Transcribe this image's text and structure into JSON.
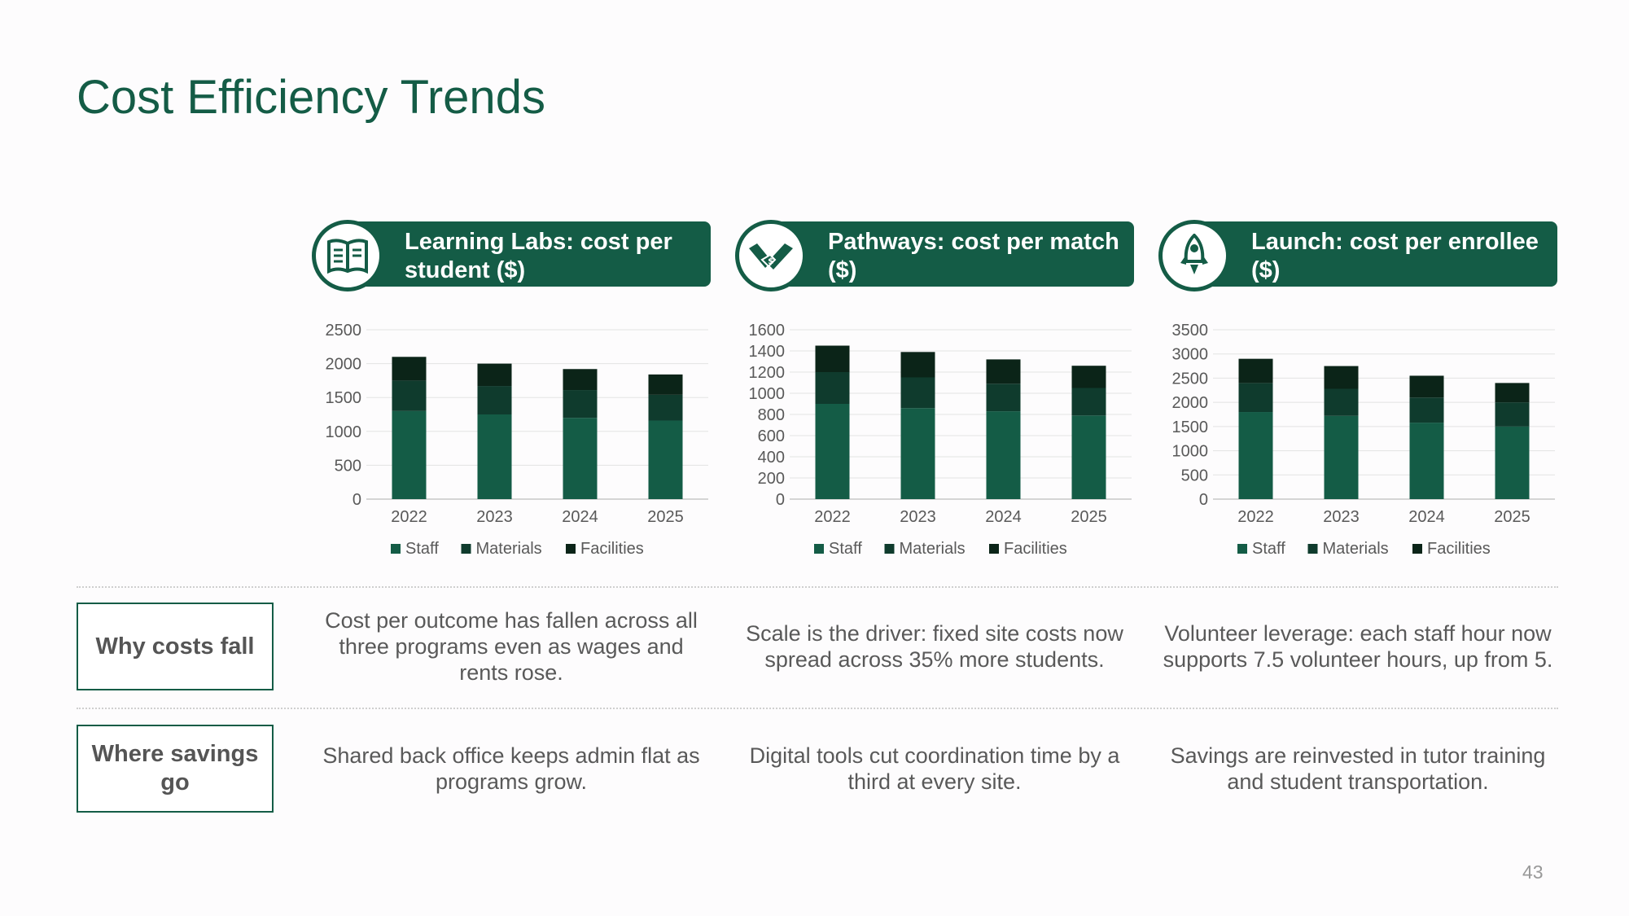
{
  "title": "Cost Efficiency Trends",
  "page_number": "43",
  "colors": {
    "accent": "#145c46",
    "staff": "#145c46",
    "materials": "#0f3b2d",
    "facilities": "#0b2418"
  },
  "programs": [
    {
      "icon": "book-icon",
      "header": "Learning Labs: cost per student ($)"
    },
    {
      "icon": "handshake-icon",
      "header": "Pathways: cost per match ($)"
    },
    {
      "icon": "rocket-icon",
      "header": "Launch: cost per enrollee ($)"
    }
  ],
  "chart_data": [
    {
      "type": "bar",
      "stacked": true,
      "categories": [
        "2022",
        "2023",
        "2024",
        "2025"
      ],
      "series": [
        {
          "name": "Staff",
          "values": [
            1300,
            1250,
            1200,
            1160
          ]
        },
        {
          "name": "Materials",
          "values": [
            450,
            420,
            410,
            380
          ]
        },
        {
          "name": "Facilities",
          "values": [
            350,
            330,
            310,
            300
          ]
        }
      ],
      "ylim": [
        0,
        2500
      ],
      "yticks": [
        "0",
        "500",
        "1000",
        "1500",
        "2000",
        "2500"
      ],
      "grid": true,
      "legend": "bottom"
    },
    {
      "type": "bar",
      "stacked": true,
      "categories": [
        "2022",
        "2023",
        "2024",
        "2025"
      ],
      "series": [
        {
          "name": "Staff",
          "values": [
            900,
            860,
            830,
            790
          ]
        },
        {
          "name": "Materials",
          "values": [
            300,
            290,
            260,
            260
          ]
        },
        {
          "name": "Facilities",
          "values": [
            250,
            240,
            230,
            210
          ]
        }
      ],
      "ylim": [
        0,
        1600
      ],
      "yticks": [
        "0",
        "200",
        "400",
        "600",
        "800",
        "1000",
        "1200",
        "1400",
        "1600"
      ],
      "grid": true,
      "legend": "bottom"
    },
    {
      "type": "bar",
      "stacked": true,
      "categories": [
        "2022",
        "2023",
        "2024",
        "2025"
      ],
      "series": [
        {
          "name": "Staff",
          "values": [
            1800,
            1720,
            1580,
            1500
          ]
        },
        {
          "name": "Materials",
          "values": [
            600,
            560,
            520,
            500
          ]
        },
        {
          "name": "Facilities",
          "values": [
            500,
            470,
            450,
            400
          ]
        }
      ],
      "ylim": [
        0,
        3500
      ],
      "yticks": [
        "0",
        "500",
        "1000",
        "1500",
        "2000",
        "2500",
        "3000",
        "3500"
      ],
      "grid": true,
      "legend": "bottom"
    }
  ],
  "rows": [
    {
      "label": "Why costs fall",
      "cells": [
        "Cost per outcome has fallen across all three programs even as wages and rents rose.",
        "Scale is the driver: fixed site costs now spread across 35% more students.",
        "Volunteer leverage: each staff hour now supports 7.5 volunteer hours, up from 5."
      ]
    },
    {
      "label": "Where savings go",
      "cells": [
        "Shared back office keeps admin flat as programs grow.",
        "Digital tools cut coordination time by a third at every site.",
        "Savings are reinvested in tutor training and student transportation."
      ]
    }
  ]
}
